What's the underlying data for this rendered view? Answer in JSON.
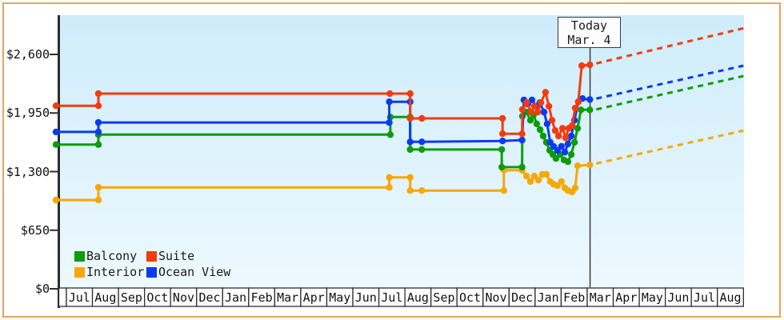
{
  "page": {
    "frame_border_color": "#E9A45F",
    "plot_background_top": "#CFECFB",
    "plot_background_bottom": "#EDF9FE",
    "axis_color": "#2D2D2D",
    "text_color": "#111111"
  },
  "chart_data": {
    "type": "line",
    "title": "",
    "description": "Cabin price history by category with dashed price projection after today",
    "x_axis": {
      "months": [
        "Jul",
        "Aug",
        "Sep",
        "Oct",
        "Nov",
        "Dec",
        "Jan",
        "Feb",
        "Mar",
        "Apr",
        "May",
        "Jun",
        "Jul",
        "Aug",
        "Sep",
        "Oct",
        "Nov",
        "Dec",
        "Jan",
        "Feb",
        "Mar",
        "Apr",
        "May",
        "Jun",
        "Jul",
        "Aug"
      ]
    },
    "y_axis": {
      "tick_labels": [
        "$0",
        "$650",
        "$1,300",
        "$1,950",
        "$2,600"
      ],
      "tick_values": [
        0,
        650,
        1300,
        1950,
        2600
      ],
      "ylim": [
        0,
        3035
      ],
      "grid": false
    },
    "today": {
      "line1": "Today",
      "line2": "Mar. 4",
      "month_position": 20.11
    },
    "legend": {
      "position": "bottom-left-inside",
      "items": [
        {
          "label": "Balcony",
          "color": "#0C9C0C"
        },
        {
          "label": "Suite",
          "color": "#F43B0E"
        },
        {
          "label": "Interior",
          "color": "#F7A707"
        },
        {
          "label": "Ocean View",
          "color": "#0B3BF1"
        }
      ]
    },
    "series": [
      {
        "name": "Interior",
        "color": "#F7A707",
        "points": [
          [
            -0.4,
            985
          ],
          [
            1.23,
            985
          ],
          [
            1.23,
            1125
          ],
          [
            12.4,
            1125
          ],
          [
            12.4,
            1235
          ],
          [
            13.2,
            1235
          ],
          [
            13.2,
            1090
          ],
          [
            13.65,
            1090
          ],
          [
            16.8,
            1090
          ],
          [
            16.8,
            1315
          ],
          [
            17.5,
            1315
          ],
          [
            17.67,
            1250
          ],
          [
            17.82,
            1190
          ],
          [
            17.97,
            1250
          ],
          [
            18.13,
            1205
          ],
          [
            18.28,
            1270
          ],
          [
            18.43,
            1270
          ],
          [
            18.58,
            1190
          ],
          [
            18.71,
            1160
          ],
          [
            18.86,
            1145
          ],
          [
            19.01,
            1190
          ],
          [
            19.14,
            1120
          ],
          [
            19.26,
            1090
          ],
          [
            19.42,
            1075
          ],
          [
            19.54,
            1120
          ],
          [
            19.63,
            1365
          ],
          [
            20.1,
            1375
          ]
        ],
        "projection": {
          "x": [
            20.35,
            26.0
          ],
          "values": [
            1390,
            1755
          ]
        }
      },
      {
        "name": "Balcony",
        "color": "#0C9C0C",
        "points": [
          [
            -0.4,
            1600
          ],
          [
            1.23,
            1600
          ],
          [
            1.23,
            1710
          ],
          [
            12.44,
            1710
          ],
          [
            12.44,
            1905
          ],
          [
            13.2,
            1905
          ],
          [
            13.2,
            1545
          ],
          [
            13.65,
            1545
          ],
          [
            16.72,
            1545
          ],
          [
            16.72,
            1350
          ],
          [
            17.5,
            1350
          ],
          [
            17.51,
            1915
          ],
          [
            17.67,
            1960
          ],
          [
            17.82,
            1870
          ],
          [
            17.94,
            1930
          ],
          [
            18.06,
            1830
          ],
          [
            18.19,
            1765
          ],
          [
            18.31,
            1695
          ],
          [
            18.43,
            1625
          ],
          [
            18.56,
            1535
          ],
          [
            18.68,
            1490
          ],
          [
            18.8,
            1445
          ],
          [
            18.96,
            1490
          ],
          [
            19.11,
            1430
          ],
          [
            19.26,
            1410
          ],
          [
            19.39,
            1490
          ],
          [
            19.51,
            1625
          ],
          [
            19.63,
            1780
          ],
          [
            19.76,
            1985
          ],
          [
            20.1,
            1985
          ]
        ],
        "projection": {
          "x": [
            20.35,
            26.0
          ],
          "values": [
            1990,
            2360
          ]
        }
      },
      {
        "name": "Ocean View",
        "color": "#0B3BF1",
        "points": [
          [
            -0.4,
            1740
          ],
          [
            1.23,
            1740
          ],
          [
            1.23,
            1845
          ],
          [
            12.4,
            1845
          ],
          [
            12.4,
            2075
          ],
          [
            13.2,
            2075
          ],
          [
            13.2,
            1630
          ],
          [
            13.65,
            1630
          ],
          [
            16.75,
            1640
          ],
          [
            17.5,
            1650
          ],
          [
            17.57,
            2095
          ],
          [
            17.72,
            2050
          ],
          [
            17.88,
            2095
          ],
          [
            18.03,
            2025
          ],
          [
            18.18,
            2065
          ],
          [
            18.34,
            1960
          ],
          [
            18.46,
            1830
          ],
          [
            18.58,
            1625
          ],
          [
            18.71,
            1580
          ],
          [
            18.86,
            1535
          ],
          [
            19.01,
            1580
          ],
          [
            19.14,
            1515
          ],
          [
            19.26,
            1605
          ],
          [
            19.39,
            1695
          ],
          [
            19.51,
            1870
          ],
          [
            19.66,
            2075
          ],
          [
            19.82,
            2110
          ],
          [
            20.1,
            2100
          ]
        ],
        "projection": {
          "x": [
            20.35,
            26.0
          ],
          "values": [
            2110,
            2475
          ]
        }
      },
      {
        "name": "Suite",
        "color": "#F43B0E",
        "points": [
          [
            -0.4,
            2030
          ],
          [
            1.23,
            2030
          ],
          [
            1.23,
            2165
          ],
          [
            12.42,
            2165
          ],
          [
            13.2,
            2165
          ],
          [
            13.2,
            1890
          ],
          [
            13.65,
            1890
          ],
          [
            16.75,
            1890
          ],
          [
            16.75,
            1720
          ],
          [
            17.5,
            1720
          ],
          [
            17.51,
            1990
          ],
          [
            17.67,
            2065
          ],
          [
            17.85,
            1960
          ],
          [
            17.97,
            2025
          ],
          [
            18.1,
            1960
          ],
          [
            18.22,
            2065
          ],
          [
            18.4,
            2180
          ],
          [
            18.53,
            2025
          ],
          [
            18.65,
            1870
          ],
          [
            18.77,
            1755
          ],
          [
            18.9,
            1695
          ],
          [
            19.05,
            1780
          ],
          [
            19.17,
            1675
          ],
          [
            19.29,
            1780
          ],
          [
            19.42,
            1810
          ],
          [
            19.54,
            2005
          ],
          [
            19.66,
            2075
          ],
          [
            19.79,
            2475
          ],
          [
            20.1,
            2485
          ]
        ],
        "projection": {
          "x": [
            20.35,
            26.0
          ],
          "values": [
            2500,
            2890
          ]
        }
      }
    ]
  }
}
